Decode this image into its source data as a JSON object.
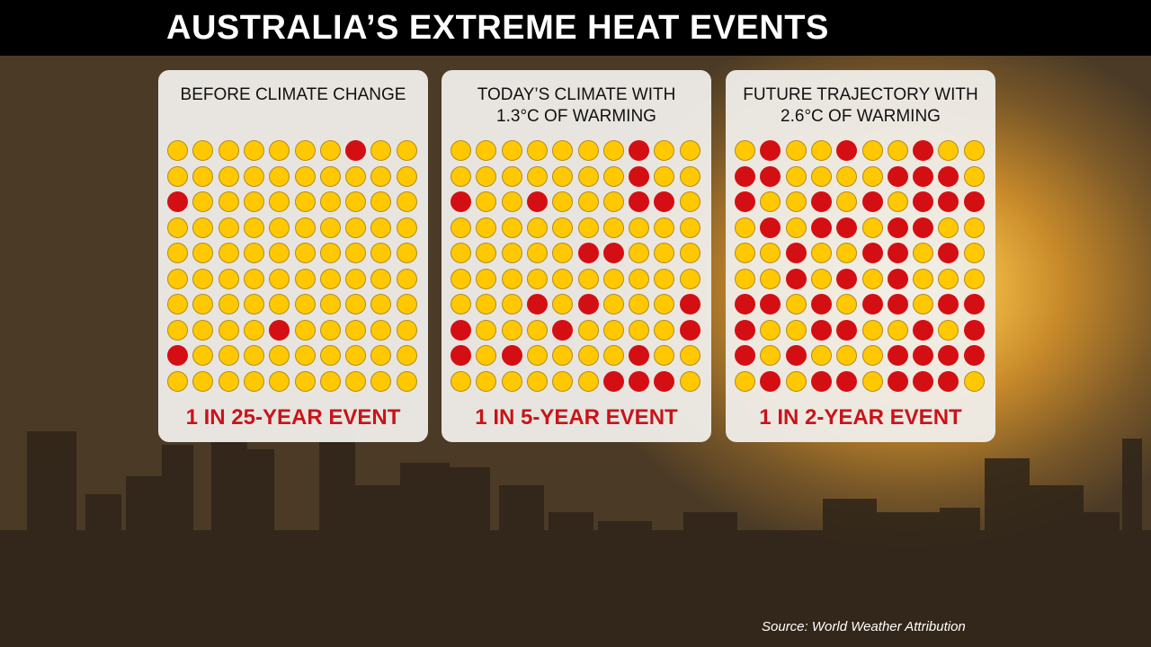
{
  "title": "AUSTRALIA’S EXTREME HEAT EVENTS",
  "source": "Source: World Weather Attribution",
  "colors": {
    "normal": "#ffc800",
    "event": "#d40f14",
    "label": "#c8141a"
  },
  "chart_data": [
    {
      "type": "waffle",
      "title_lines": [
        "BEFORE CLIMATE CHANGE"
      ],
      "label": "1 IN 25-YEAR EVENT",
      "event_count": 4,
      "total": 100,
      "grid": [
        "0000000100",
        "0000000000",
        "1000000000",
        "0000000000",
        "0000000000",
        "0000000000",
        "0000000000",
        "0000100000",
        "1000000000",
        "0000000000"
      ]
    },
    {
      "type": "waffle",
      "title_lines": [
        "TODAY’S CLIMATE WITH",
        "1.3°C OF WARMING"
      ],
      "label": "1 IN 5-YEAR EVENT",
      "event_count": 20,
      "total": 100,
      "grid": [
        "0000000100",
        "0000000100",
        "1001000110",
        "0000000000",
        "0000011000",
        "0000000000",
        "0001010001",
        "1000100001",
        "1010000100",
        "0000001110"
      ]
    },
    {
      "type": "waffle",
      "title_lines": [
        "FUTURE TRAJECTORY WITH",
        "2.6°C OF WARMING"
      ],
      "label": "1 IN 2-YEAR EVENT",
      "event_count": 50,
      "total": 100,
      "grid": [
        "0100100100",
        "1100001110",
        "1001010111",
        "0101101100",
        "0010011010",
        "0010101000",
        "1101011011",
        "1001100101",
        "1010001111",
        "0101101110"
      ]
    }
  ]
}
